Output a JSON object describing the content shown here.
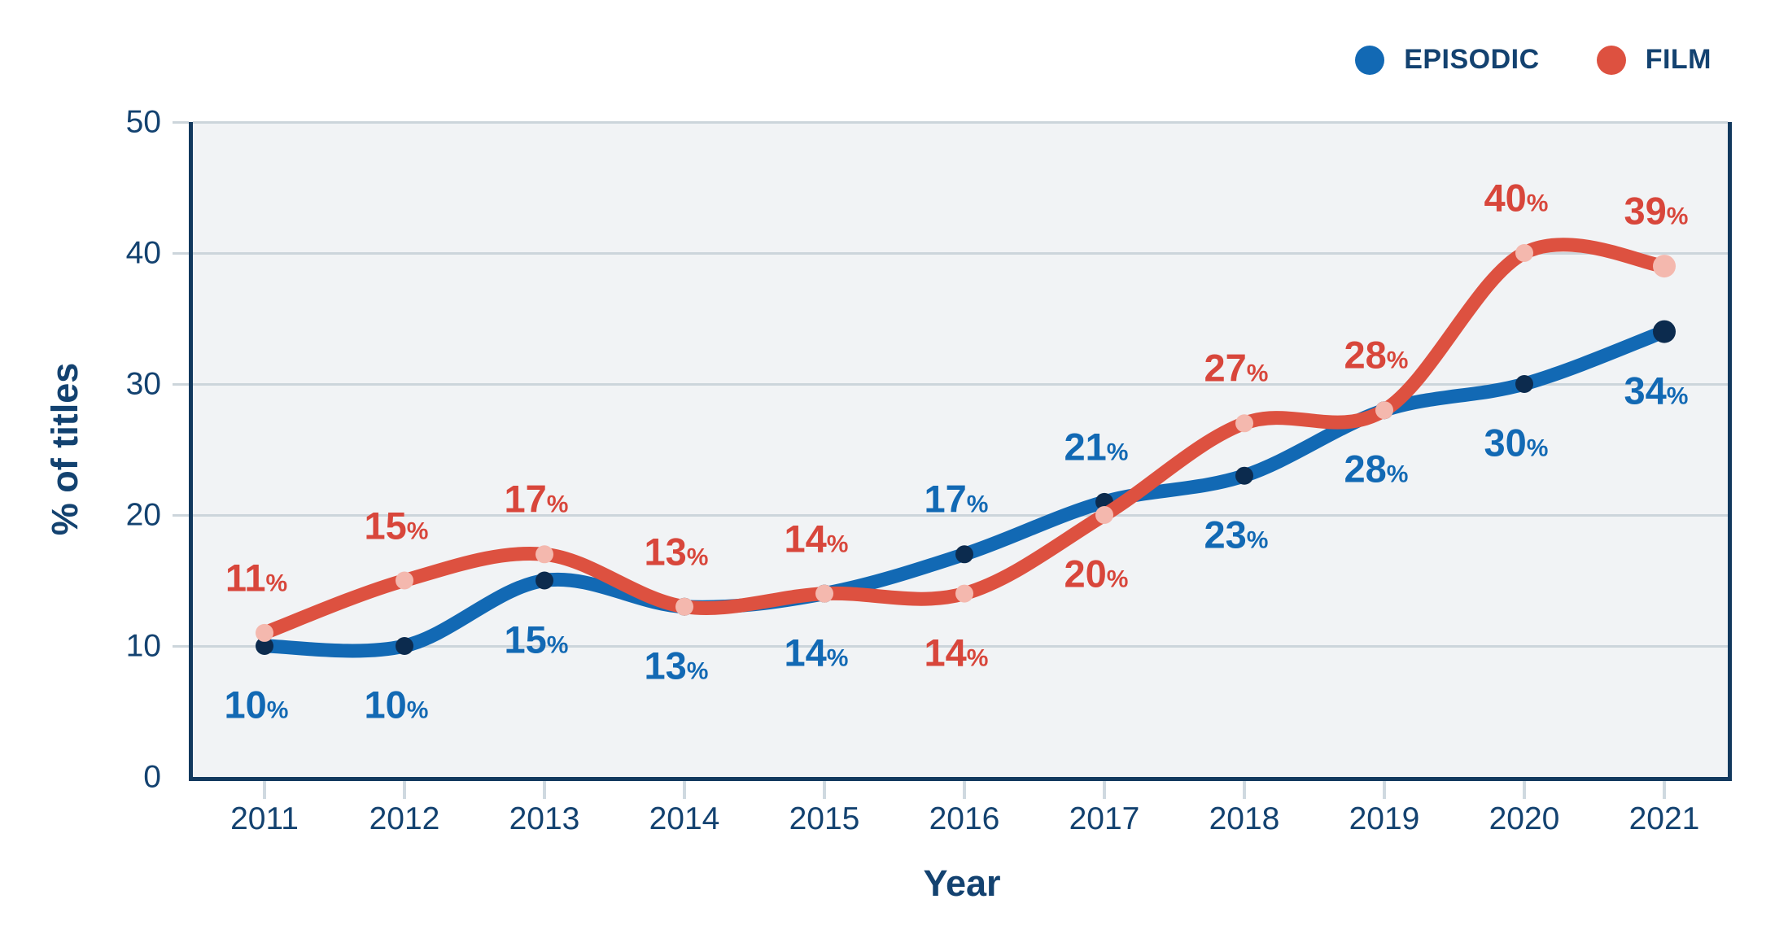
{
  "legend": {
    "items": [
      {
        "label": "EPISODIC",
        "color": "#1269b4"
      },
      {
        "label": "FILM",
        "color": "#dd5140"
      }
    ]
  },
  "chart_data": {
    "type": "line",
    "x": [
      "2011",
      "2012",
      "2013",
      "2014",
      "2015",
      "2016",
      "2017",
      "2018",
      "2019",
      "2020",
      "2021"
    ],
    "xlabel": "Year",
    "ylabel": "% of titles",
    "ylim": [
      0,
      50
    ],
    "yticks": [
      0,
      10,
      20,
      30,
      40,
      50
    ],
    "grid": true,
    "legend_position": "top-right",
    "plot_bg": "#f1f3f5",
    "gridline_color": "#ccd5db",
    "axis_color": "#12395e",
    "text_color": "#134270",
    "series": [
      {
        "name": "EPISODIC",
        "color": "#1269b4",
        "marker_color": "#0c2b4e",
        "label_color": "#1269b4",
        "unit": "%",
        "values": [
          10,
          10,
          15,
          13,
          14,
          17,
          21,
          23,
          28,
          30,
          34
        ],
        "label_sides": [
          "below",
          "below",
          "below",
          "below",
          "below",
          "above",
          "above",
          "below",
          "below",
          "below",
          "below"
        ]
      },
      {
        "name": "FILM",
        "color": "#dd5140",
        "marker_color": "#f4b8ae",
        "label_color": "#d8463b",
        "unit": "%",
        "values": [
          11,
          15,
          17,
          13,
          14,
          14,
          20,
          27,
          28,
          40,
          39
        ],
        "label_sides": [
          "above",
          "above",
          "above",
          "above",
          "above",
          "below",
          "below",
          "above",
          "above",
          "above",
          "above"
        ]
      }
    ]
  }
}
